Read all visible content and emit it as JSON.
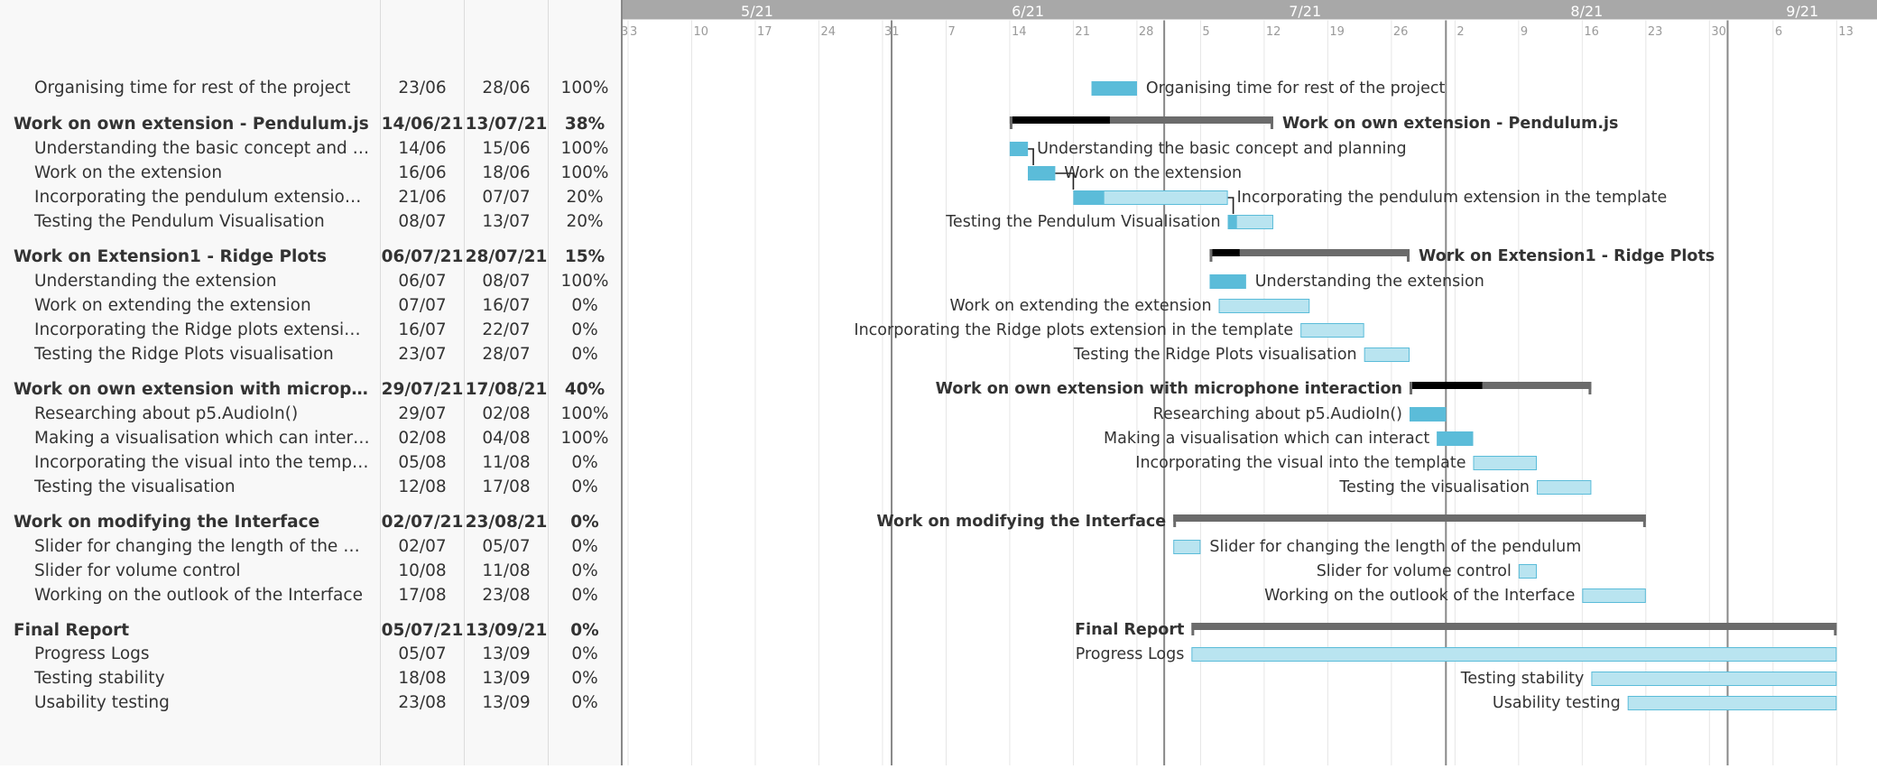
{
  "chart_data": {
    "type": "gantt",
    "timeline": {
      "months": [
        "5/21",
        "6/21",
        "7/21",
        "8/21",
        "9/21"
      ],
      "week_ticks": [
        "3",
        "3",
        "10",
        "17",
        "24",
        "31",
        "7",
        "14",
        "21",
        "28",
        "5",
        "12",
        "19",
        "26",
        "2",
        "9",
        "16",
        "23",
        "30",
        "6",
        "13"
      ]
    },
    "tasks": [
      {
        "name": "Organising time for rest of the project",
        "start": "23/06",
        "end": "28/06",
        "progress": "100%",
        "group": false,
        "s": "2021-06-23",
        "e": "2021-06-28",
        "p": 100,
        "label_side": "right"
      },
      {
        "name": "Work on own extension - Pendulum.js",
        "start": "14/06/21",
        "end": "13/07/21",
        "progress": "38%",
        "group": true,
        "s": "2021-06-14",
        "e": "2021-07-13",
        "p": 38,
        "label_side": "right"
      },
      {
        "name": "Understanding the basic concept and planning",
        "start": "14/06",
        "end": "15/06",
        "progress": "100%",
        "group": false,
        "s": "2021-06-14",
        "e": "2021-06-16",
        "p": 100,
        "label_side": "right"
      },
      {
        "name": "Work on the extension",
        "start": "16/06",
        "end": "18/06",
        "progress": "100%",
        "group": false,
        "s": "2021-06-16",
        "e": "2021-06-19",
        "p": 100,
        "label_side": "right"
      },
      {
        "name": "Incorporating the pendulum extension in the template",
        "start": "21/06",
        "end": "07/07",
        "progress": "20%",
        "group": false,
        "s": "2021-06-21",
        "e": "2021-07-08",
        "p": 20,
        "label_side": "right"
      },
      {
        "name": "Testing the Pendulum Visualisation",
        "start": "08/07",
        "end": "13/07",
        "progress": "20%",
        "group": false,
        "s": "2021-07-08",
        "e": "2021-07-13",
        "p": 20,
        "label_side": "left"
      },
      {
        "name": "Work on Extension1 - Ridge Plots",
        "start": "06/07/21",
        "end": "28/07/21",
        "progress": "15%",
        "group": true,
        "s": "2021-07-06",
        "e": "2021-07-28",
        "p": 15,
        "label_side": "right"
      },
      {
        "name": "Understanding the extension",
        "start": "06/07",
        "end": "08/07",
        "progress": "100%",
        "group": false,
        "s": "2021-07-06",
        "e": "2021-07-10",
        "p": 100,
        "label_side": "right"
      },
      {
        "name": "Work on extending the extension",
        "start": "07/07",
        "end": "16/07",
        "progress": "0%",
        "group": false,
        "s": "2021-07-07",
        "e": "2021-07-17",
        "p": 0,
        "label_side": "left"
      },
      {
        "name": "Incorporating the Ridge plots extension in the template",
        "start": "16/07",
        "end": "22/07",
        "progress": "0%",
        "group": false,
        "s": "2021-07-16",
        "e": "2021-07-23",
        "p": 0,
        "label_side": "left"
      },
      {
        "name": "Testing the Ridge Plots visualisation",
        "start": "23/07",
        "end": "28/07",
        "progress": "0%",
        "group": false,
        "s": "2021-07-23",
        "e": "2021-07-28",
        "p": 0,
        "label_side": "left"
      },
      {
        "name": "Work on own extension with microphone interaction",
        "start": "29/07/21",
        "end": "17/08/21",
        "progress": "40%",
        "group": true,
        "s": "2021-07-28",
        "e": "2021-08-17",
        "p": 40,
        "label_side": "left"
      },
      {
        "name": "Researching about p5.AudioIn()",
        "start": "29/07",
        "end": "02/08",
        "progress": "100%",
        "group": false,
        "s": "2021-07-28",
        "e": "2021-08-01",
        "p": 100,
        "label_side": "left"
      },
      {
        "name": "Making a visualisation which can interact",
        "start": "02/08",
        "end": "04/08",
        "progress": "100%",
        "group": false,
        "s": "2021-07-31",
        "e": "2021-08-04",
        "p": 100,
        "label_side": "left"
      },
      {
        "name": "Incorporating the visual into the template",
        "start": "05/08",
        "end": "11/08",
        "progress": "0%",
        "group": false,
        "s": "2021-08-04",
        "e": "2021-08-11",
        "p": 0,
        "label_side": "left"
      },
      {
        "name": "Testing the visualisation",
        "start": "12/08",
        "end": "17/08",
        "progress": "0%",
        "group": false,
        "s": "2021-08-11",
        "e": "2021-08-17",
        "p": 0,
        "label_side": "left"
      },
      {
        "name": "Work on modifying the Interface",
        "start": "02/07/21",
        "end": "23/08/21",
        "progress": "0%",
        "group": true,
        "s": "2021-07-02",
        "e": "2021-08-23",
        "p": 0,
        "label_side": "left"
      },
      {
        "name": "Slider for changing the length of the pendulum",
        "start": "02/07",
        "end": "05/07",
        "progress": "0%",
        "group": false,
        "s": "2021-07-02",
        "e": "2021-07-05",
        "p": 0,
        "label_side": "right"
      },
      {
        "name": "Slider for volume control",
        "start": "10/08",
        "end": "11/08",
        "progress": "0%",
        "group": false,
        "s": "2021-08-09",
        "e": "2021-08-11",
        "p": 0,
        "label_side": "left"
      },
      {
        "name": "Working on the outlook of the Interface",
        "start": "17/08",
        "end": "23/08",
        "progress": "0%",
        "group": false,
        "s": "2021-08-16",
        "e": "2021-08-23",
        "p": 0,
        "label_side": "left"
      },
      {
        "name": "Final Report",
        "start": "05/07/21",
        "end": "13/09/21",
        "progress": "0%",
        "group": true,
        "s": "2021-07-04",
        "e": "2021-09-13",
        "p": 0,
        "label_side": "left"
      },
      {
        "name": "Progress Logs",
        "start": "05/07",
        "end": "13/09",
        "progress": "0%",
        "group": false,
        "s": "2021-07-04",
        "e": "2021-09-13",
        "p": 0,
        "label_side": "left"
      },
      {
        "name": "Testing stability",
        "start": "18/08",
        "end": "13/09",
        "progress": "0%",
        "group": false,
        "s": "2021-08-17",
        "e": "2021-09-13",
        "p": 0,
        "label_side": "left"
      },
      {
        "name": "Usability testing",
        "start": "23/08",
        "end": "13/09",
        "progress": "0%",
        "group": false,
        "s": "2021-08-21",
        "e": "2021-09-13",
        "p": 0,
        "label_side": "left"
      }
    ],
    "dependencies": [
      [
        2,
        3
      ],
      [
        3,
        4
      ],
      [
        4,
        5
      ]
    ],
    "colors": {
      "header_bg": "#a8a8a8",
      "group_bar": "#6b6b6b",
      "group_progress": "#000000",
      "task_fill": "#b9e4f0",
      "task_progress": "#5bbcd9",
      "task_border": "#5bbcd9",
      "month_line": "#888888",
      "week_line": "#e6e6e6"
    }
  }
}
